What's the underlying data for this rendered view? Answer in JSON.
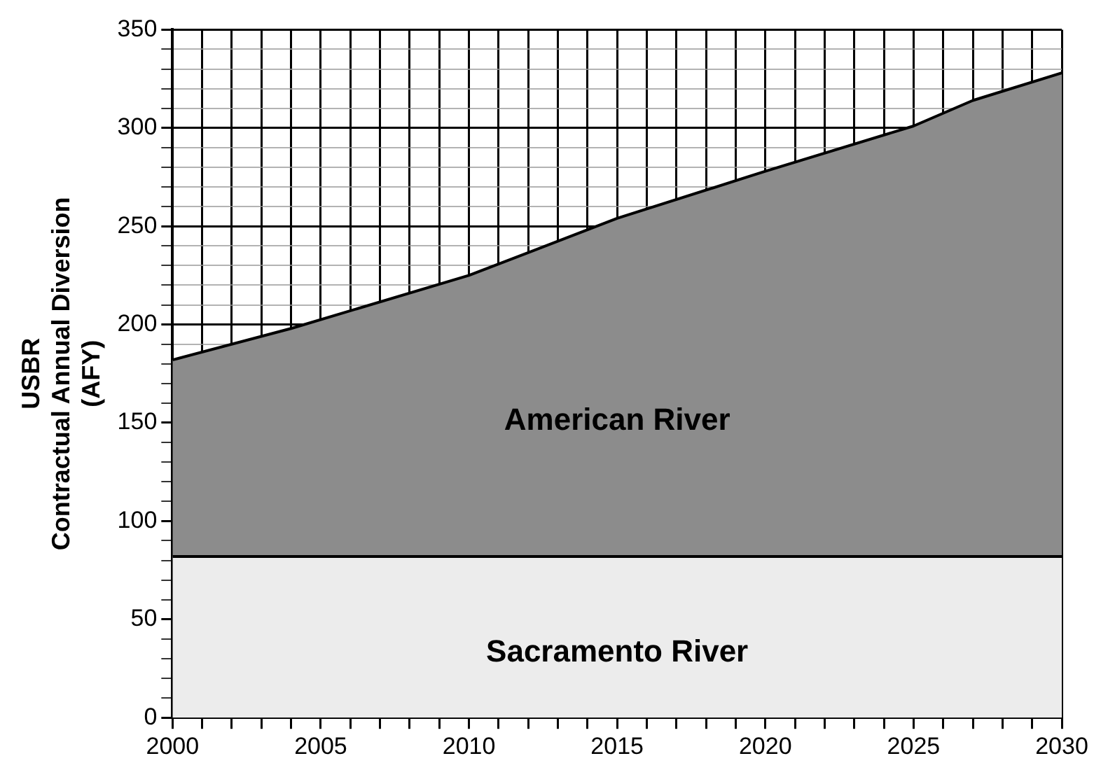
{
  "chart_data": {
    "type": "area",
    "stacked": true,
    "ylabel": "USBR\nContractual Annual Diversion\n(AFY)",
    "grid": true,
    "marker": "none",
    "x": [
      2000,
      2004,
      2010,
      2015,
      2020,
      2025,
      2027,
      2030
    ],
    "series": [
      {
        "name": "Sacramento River",
        "color": "#ececec",
        "values": [
          82,
          82,
          82,
          82,
          82,
          82,
          82,
          82
        ]
      },
      {
        "name": "American River",
        "color": "#8c8c8c",
        "values": [
          100,
          116,
          143,
          172,
          196,
          219,
          232,
          246
        ]
      }
    ],
    "xlim": [
      2000,
      2030
    ],
    "xticks": [
      2000,
      {
        "value": 2001,
        "label": null
      },
      {
        "value": 2002,
        "label": null
      },
      {
        "value": 2003,
        "label": null
      },
      {
        "value": 2004,
        "label": null
      },
      2005,
      {
        "value": 2006,
        "label": null
      },
      {
        "value": 2007,
        "label": null
      },
      {
        "value": 2008,
        "label": null
      },
      {
        "value": 2009,
        "label": null
      },
      2010,
      {
        "value": 2011,
        "label": null
      },
      {
        "value": 2012,
        "label": null
      },
      {
        "value": 2013,
        "label": null
      },
      {
        "value": 2014,
        "label": null
      },
      2015,
      {
        "value": 2016,
        "label": null
      },
      {
        "value": 2017,
        "label": null
      },
      {
        "value": 2018,
        "label": null
      },
      {
        "value": 2019,
        "label": null
      },
      2020,
      {
        "value": 2021,
        "label": null
      },
      {
        "value": 2022,
        "label": null
      },
      {
        "value": 2023,
        "label": null
      },
      {
        "value": 2024,
        "label": null
      },
      2025,
      {
        "value": 2026,
        "label": null
      },
      {
        "value": 2027,
        "label": null
      },
      {
        "value": 2028,
        "label": null
      },
      {
        "value": 2029,
        "label": null
      },
      2030
    ],
    "ylim": [
      0,
      350
    ],
    "yticks": [
      0,
      {
        "value": 10,
        "label": null
      },
      {
        "value": 20,
        "label": null
      },
      {
        "value": 30,
        "label": null
      },
      {
        "value": 40,
        "label": null
      },
      50,
      {
        "value": 60,
        "label": null
      },
      {
        "value": 70,
        "label": null
      },
      {
        "value": 80,
        "label": null
      },
      {
        "value": 90,
        "label": null
      },
      100,
      {
        "value": 110,
        "label": null
      },
      {
        "value": 120,
        "label": null
      },
      {
        "value": 130,
        "label": null
      },
      {
        "value": 140,
        "label": null
      },
      150,
      {
        "value": 160,
        "label": null
      },
      {
        "value": 170,
        "label": null
      },
      {
        "value": 180,
        "label": null
      },
      {
        "value": 190,
        "label": null
      },
      200,
      {
        "value": 210,
        "label": null
      },
      {
        "value": 220,
        "label": null
      },
      {
        "value": 230,
        "label": null
      },
      {
        "value": 240,
        "label": null
      },
      250,
      {
        "value": 260,
        "label": null
      },
      {
        "value": 270,
        "label": null
      },
      {
        "value": 280,
        "label": null
      },
      {
        "value": 290,
        "label": null
      },
      300,
      {
        "value": 310,
        "label": null
      },
      {
        "value": 320,
        "label": null
      },
      {
        "value": 330,
        "label": null
      },
      {
        "value": 340,
        "label": null
      },
      350
    ]
  }
}
